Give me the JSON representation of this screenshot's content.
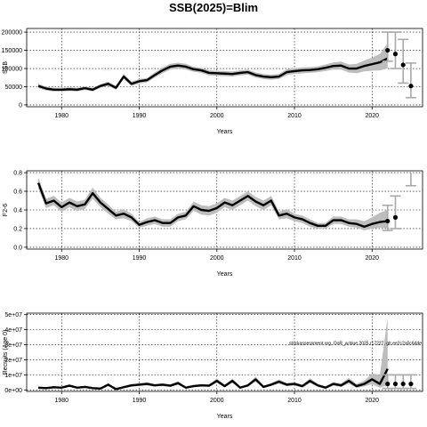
{
  "title": "SSB(2025)=Blim",
  "colors": {
    "band": "#bdbdbd",
    "line": "#000000",
    "proj_errorbar": "#a9a9a9",
    "grid": "#000000"
  },
  "chart_data": [
    {
      "id": "ssb",
      "type": "line",
      "xlabel": "Years",
      "ylabel": "SSB",
      "xlim": [
        1975.5,
        2026.5
      ],
      "ylim": [
        -5000,
        210000
      ],
      "xticks": [
        1980,
        1990,
        2000,
        2010,
        2020
      ],
      "yticks": [
        0,
        50000,
        100000,
        150000,
        200000
      ],
      "yticklabels": [
        "0",
        "50000",
        "100000",
        "150000",
        "200000"
      ],
      "grid": true,
      "series": [
        {
          "role": "estimate",
          "x": [
            1977,
            1978,
            1979,
            1980,
            1981,
            1982,
            1983,
            1984,
            1985,
            1986,
            1987,
            1988,
            1989,
            1990,
            1991,
            1992,
            1993,
            1994,
            1995,
            1996,
            1997,
            1998,
            1999,
            2000,
            2001,
            2002,
            2003,
            2004,
            2005,
            2006,
            2007,
            2008,
            2009,
            2010,
            2011,
            2012,
            2013,
            2014,
            2015,
            2016,
            2017,
            2018,
            2019,
            2020,
            2021,
            2022
          ],
          "values": [
            52000,
            45000,
            42000,
            42000,
            43000,
            42000,
            46000,
            42000,
            52000,
            58000,
            47000,
            78000,
            58000,
            65000,
            68000,
            82000,
            95000,
            105000,
            108000,
            105000,
            98000,
            95000,
            88000,
            87000,
            86000,
            85000,
            88000,
            90000,
            82000,
            78000,
            76000,
            78000,
            90000,
            93000,
            95000,
            96000,
            98000,
            102000,
            107000,
            108000,
            100000,
            100000,
            107000,
            112000,
            117000,
            128000
          ],
          "lower": [
            46000,
            40000,
            37000,
            37000,
            38000,
            37000,
            41000,
            37000,
            47000,
            52000,
            42000,
            71000,
            52000,
            59000,
            62000,
            75000,
            87000,
            97000,
            100000,
            97000,
            91000,
            88000,
            81000,
            80000,
            79000,
            78000,
            81000,
            83000,
            75000,
            71000,
            69000,
            71000,
            82000,
            85000,
            87000,
            88000,
            90000,
            93000,
            97000,
            97000,
            89000,
            87000,
            92000,
            94000,
            95000,
            100000
          ],
          "upper": [
            58000,
            50000,
            47000,
            47000,
            48000,
            47000,
            51000,
            47000,
            57000,
            64000,
            52000,
            85000,
            64000,
            71000,
            74000,
            89000,
            103000,
            113000,
            116000,
            113000,
            105000,
            102000,
            95000,
            94000,
            93000,
            92000,
            95000,
            97000,
            89000,
            85000,
            83000,
            85000,
            98000,
            101000,
            103000,
            104000,
            106000,
            111000,
            117000,
            119000,
            111000,
            113000,
            122000,
            130000,
            140000,
            170000
          ]
        }
      ],
      "projection": [
        {
          "x": 2022,
          "value": 150000,
          "lower": 120000,
          "upper": 200000
        },
        {
          "x": 2023,
          "value": 140000,
          "lower": 100000,
          "upper": 200000
        },
        {
          "x": 2024,
          "value": 110000,
          "lower": 60000,
          "upper": 180000
        },
        {
          "x": 2025,
          "value": 52000,
          "lower": 20000,
          "upper": 115000
        }
      ]
    },
    {
      "id": "f",
      "type": "line",
      "xlabel": "Years",
      "ylabel": "F2-6",
      "xlim": [
        1975.5,
        2026.5
      ],
      "ylim": [
        -0.02,
        0.82
      ],
      "xticks": [
        1980,
        1990,
        2000,
        2010,
        2020
      ],
      "yticks": [
        0.0,
        0.2,
        0.4,
        0.6,
        0.8
      ],
      "yticklabels": [
        "0.0",
        "0.2",
        "0.4",
        "0.6",
        "0.8"
      ],
      "grid": true,
      "series": [
        {
          "role": "estimate",
          "x": [
            1977,
            1978,
            1979,
            1980,
            1981,
            1982,
            1983,
            1984,
            1985,
            1986,
            1987,
            1988,
            1989,
            1990,
            1991,
            1992,
            1993,
            1994,
            1995,
            1996,
            1997,
            1998,
            1999,
            2000,
            2001,
            2002,
            2003,
            2004,
            2005,
            2006,
            2007,
            2008,
            2009,
            2010,
            2011,
            2012,
            2013,
            2014,
            2015,
            2016,
            2017,
            2018,
            2019,
            2020,
            2021,
            2022
          ],
          "values": [
            0.69,
            0.47,
            0.5,
            0.43,
            0.48,
            0.44,
            0.46,
            0.58,
            0.48,
            0.41,
            0.34,
            0.36,
            0.32,
            0.24,
            0.27,
            0.29,
            0.26,
            0.26,
            0.32,
            0.34,
            0.44,
            0.4,
            0.39,
            0.42,
            0.48,
            0.45,
            0.5,
            0.55,
            0.49,
            0.45,
            0.5,
            0.34,
            0.36,
            0.32,
            0.3,
            0.26,
            0.23,
            0.23,
            0.29,
            0.29,
            0.26,
            0.25,
            0.22,
            0.25,
            0.27,
            0.28
          ],
          "lower": [
            0.63,
            0.42,
            0.45,
            0.38,
            0.43,
            0.39,
            0.41,
            0.52,
            0.43,
            0.36,
            0.3,
            0.31,
            0.28,
            0.21,
            0.23,
            0.25,
            0.22,
            0.22,
            0.28,
            0.3,
            0.39,
            0.35,
            0.34,
            0.37,
            0.43,
            0.4,
            0.45,
            0.5,
            0.44,
            0.4,
            0.45,
            0.3,
            0.31,
            0.28,
            0.26,
            0.22,
            0.2,
            0.2,
            0.25,
            0.25,
            0.22,
            0.21,
            0.18,
            0.2,
            0.21,
            0.2
          ],
          "upper": [
            0.75,
            0.52,
            0.55,
            0.48,
            0.53,
            0.49,
            0.51,
            0.64,
            0.53,
            0.46,
            0.38,
            0.41,
            0.36,
            0.27,
            0.31,
            0.33,
            0.3,
            0.3,
            0.36,
            0.38,
            0.49,
            0.45,
            0.44,
            0.47,
            0.53,
            0.5,
            0.55,
            0.6,
            0.54,
            0.5,
            0.55,
            0.38,
            0.41,
            0.36,
            0.34,
            0.3,
            0.26,
            0.26,
            0.33,
            0.33,
            0.3,
            0.3,
            0.28,
            0.32,
            0.37,
            0.4
          ]
        }
      ],
      "projection": [
        {
          "x": 2022,
          "value": 0.28,
          "lower": 0.18,
          "upper": 0.45
        },
        {
          "x": 2023,
          "value": 0.32,
          "lower": 0.2,
          "upper": 0.55
        }
      ],
      "extra_bar": {
        "x": 2025,
        "lower": 0.66,
        "upper": 0.8
      }
    },
    {
      "id": "recruits",
      "type": "line",
      "xlabel": "Years",
      "ylabel": "Recruits (Age 0)",
      "xlim": [
        1975.5,
        2026.5
      ],
      "ylim": [
        -1000000,
        51000000
      ],
      "xticks": [
        1980,
        1990,
        2000,
        2010,
        2020
      ],
      "yticks": [
        0,
        10000000,
        20000000,
        30000000,
        40000000,
        50000000
      ],
      "yticklabels": [
        "0e+00",
        "1e+07",
        "2e+07",
        "3e+07",
        "4e+07",
        "5e+07"
      ],
      "grid": true,
      "annotation": "stockassessment.org, OoR_w.blue.2025.r17227, gtr.ee2c2a0c6dde",
      "series": [
        {
          "role": "estimate",
          "x": [
            1977,
            1978,
            1979,
            1980,
            1981,
            1982,
            1983,
            1984,
            1985,
            1986,
            1987,
            1988,
            1989,
            1990,
            1991,
            1992,
            1993,
            1994,
            1995,
            1996,
            1997,
            1998,
            1999,
            2000,
            2001,
            2002,
            2003,
            2004,
            2005,
            2006,
            2007,
            2008,
            2009,
            2010,
            2011,
            2012,
            2013,
            2014,
            2015,
            2016,
            2017,
            2018,
            2019,
            2020,
            2021,
            2022
          ],
          "values": [
            1500000,
            1200000,
            1800000,
            1500000,
            2800000,
            1500000,
            2000000,
            1200000,
            900000,
            3500000,
            500000,
            1800000,
            3000000,
            3500000,
            4000000,
            3000000,
            3500000,
            2800000,
            4500000,
            1500000,
            2500000,
            3000000,
            2800000,
            6000000,
            2500000,
            6000000,
            1500000,
            3000000,
            7000000,
            2000000,
            3500000,
            5500000,
            3500000,
            4000000,
            2500000,
            6000000,
            3000000,
            1500000,
            4000000,
            3000000,
            6000000,
            2500000,
            4000000,
            7000000,
            4000000,
            14000000
          ],
          "lower": [
            900000,
            700000,
            1200000,
            900000,
            2000000,
            900000,
            1300000,
            700000,
            400000,
            2600000,
            200000,
            1100000,
            2200000,
            2600000,
            3000000,
            2200000,
            2600000,
            2000000,
            3400000,
            900000,
            1700000,
            2200000,
            2000000,
            4600000,
            1700000,
            4600000,
            900000,
            2200000,
            5400000,
            1300000,
            2600000,
            4100000,
            2500000,
            2900000,
            1600000,
            4500000,
            2000000,
            800000,
            2800000,
            1900000,
            4200000,
            1400000,
            2300000,
            3800000,
            1500000,
            3000000
          ],
          "upper": [
            2200000,
            1800000,
            2500000,
            2100000,
            3700000,
            2100000,
            2800000,
            1800000,
            1500000,
            4500000,
            900000,
            2600000,
            3900000,
            4500000,
            5100000,
            3900000,
            4500000,
            3700000,
            5700000,
            2200000,
            3400000,
            3900000,
            3700000,
            7600000,
            3400000,
            7600000,
            2200000,
            3900000,
            8800000,
            2800000,
            4500000,
            7000000,
            4600000,
            5200000,
            3500000,
            7700000,
            4100000,
            2400000,
            5300000,
            4300000,
            8000000,
            3900000,
            6200000,
            11000000,
            10000000,
            48000000
          ]
        }
      ],
      "projection": [
        {
          "x": 2022,
          "value": 4000000,
          "lower": 1000000,
          "upper": 10000000
        },
        {
          "x": 2023,
          "value": 4000000,
          "lower": 1000000,
          "upper": 10000000
        },
        {
          "x": 2024,
          "value": 4000000,
          "lower": 1000000,
          "upper": 10000000
        },
        {
          "x": 2025,
          "value": 4000000,
          "lower": 1000000,
          "upper": 10000000
        }
      ]
    }
  ]
}
